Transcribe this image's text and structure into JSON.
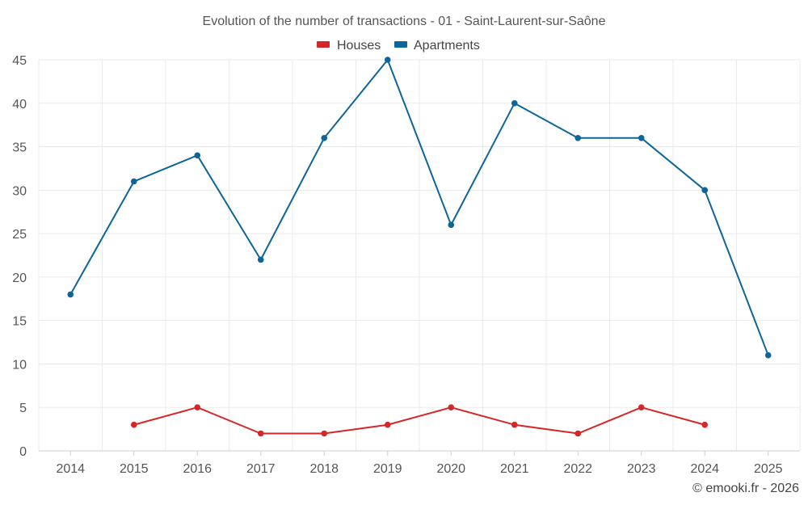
{
  "chart_data": {
    "type": "line",
    "title": "Evolution of the number of transactions - 01 - Saint-Laurent-sur-Saône",
    "xlabel": "",
    "ylabel": "",
    "categories": [
      "2014",
      "2015",
      "2016",
      "2017",
      "2018",
      "2019",
      "2020",
      "2021",
      "2022",
      "2023",
      "2024",
      "2025"
    ],
    "ylim": [
      0,
      45
    ],
    "yticks": [
      0,
      5,
      10,
      15,
      20,
      25,
      30,
      35,
      40,
      45
    ],
    "grid": true,
    "legend_position": "top-center",
    "series": [
      {
        "name": "Houses",
        "color": "#d62728",
        "values": [
          null,
          3,
          5,
          2,
          2,
          3,
          5,
          3,
          2,
          5,
          3,
          null
        ]
      },
      {
        "name": "Apartments",
        "color": "#0e6599",
        "values": [
          18,
          31,
          34,
          22,
          36,
          45,
          26,
          40,
          36,
          36,
          30,
          11
        ]
      }
    ]
  },
  "credit": "© emooki.fr - 2026"
}
